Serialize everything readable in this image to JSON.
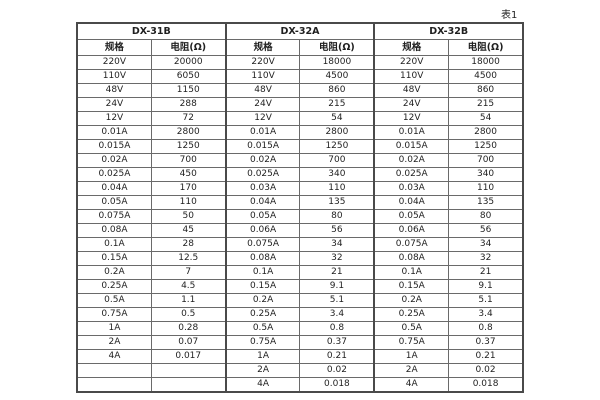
{
  "page": {
    "caption": "表1"
  },
  "table": {
    "row_count": 24,
    "colors": {
      "background": "#ffffff",
      "border": "#6a6a6a",
      "outer_border": "#4a4a4a",
      "text": "#1f1f1f"
    },
    "groups": [
      {
        "name": "DX-31B",
        "col_headers": [
          "规格",
          "电阻(Ω)"
        ],
        "rows": [
          [
            "220V",
            "20000"
          ],
          [
            "110V",
            "6050"
          ],
          [
            "48V",
            "1150"
          ],
          [
            "24V",
            "288"
          ],
          [
            "12V",
            "72"
          ],
          [
            "0.01A",
            "2800"
          ],
          [
            "0.015A",
            "1250"
          ],
          [
            "0.02A",
            "700"
          ],
          [
            "0.025A",
            "450"
          ],
          [
            "0.04A",
            "170"
          ],
          [
            "0.05A",
            "110"
          ],
          [
            "0.075A",
            "50"
          ],
          [
            "0.08A",
            "45"
          ],
          [
            "0.1A",
            "28"
          ],
          [
            "0.15A",
            "12.5"
          ],
          [
            "0.2A",
            "7"
          ],
          [
            "0.25A",
            "4.5"
          ],
          [
            "0.5A",
            "1.1"
          ],
          [
            "0.75A",
            "0.5"
          ],
          [
            "1A",
            "0.28"
          ],
          [
            "2A",
            "0.07"
          ],
          [
            "4A",
            "0.017"
          ],
          [
            "",
            ""
          ],
          [
            "",
            ""
          ]
        ]
      },
      {
        "name": "DX-32A",
        "col_headers": [
          "规格",
          "电阻(Ω)"
        ],
        "rows": [
          [
            "220V",
            "18000"
          ],
          [
            "110V",
            "4500"
          ],
          [
            "48V",
            "860"
          ],
          [
            "24V",
            "215"
          ],
          [
            "12V",
            "54"
          ],
          [
            "0.01A",
            "2800"
          ],
          [
            "0.015A",
            "1250"
          ],
          [
            "0.02A",
            "700"
          ],
          [
            "0.025A",
            "340"
          ],
          [
            "0.03A",
            "110"
          ],
          [
            "0.04A",
            "135"
          ],
          [
            "0.05A",
            "80"
          ],
          [
            "0.06A",
            "56"
          ],
          [
            "0.075A",
            "34"
          ],
          [
            "0.08A",
            "32"
          ],
          [
            "0.1A",
            "21"
          ],
          [
            "0.15A",
            "9.1"
          ],
          [
            "0.2A",
            "5.1"
          ],
          [
            "0.25A",
            "3.4"
          ],
          [
            "0.5A",
            "0.8"
          ],
          [
            "0.75A",
            "0.37"
          ],
          [
            "1A",
            "0.21"
          ],
          [
            "2A",
            "0.02"
          ],
          [
            "4A",
            "0.018"
          ]
        ]
      },
      {
        "name": "DX-32B",
        "col_headers": [
          "规格",
          "电阻(Ω)"
        ],
        "rows": [
          [
            "220V",
            "18000"
          ],
          [
            "110V",
            "4500"
          ],
          [
            "48V",
            "860"
          ],
          [
            "24V",
            "215"
          ],
          [
            "12V",
            "54"
          ],
          [
            "0.01A",
            "2800"
          ],
          [
            "0.015A",
            "1250"
          ],
          [
            "0.02A",
            "700"
          ],
          [
            "0.025A",
            "340"
          ],
          [
            "0.03A",
            "110"
          ],
          [
            "0.04A",
            "135"
          ],
          [
            "0.05A",
            "80"
          ],
          [
            "0.06A",
            "56"
          ],
          [
            "0.075A",
            "34"
          ],
          [
            "0.08A",
            "32"
          ],
          [
            "0.1A",
            "21"
          ],
          [
            "0.15A",
            "9.1"
          ],
          [
            "0.2A",
            "5.1"
          ],
          [
            "0.25A",
            "3.4"
          ],
          [
            "0.5A",
            "0.8"
          ],
          [
            "0.75A",
            "0.37"
          ],
          [
            "1A",
            "0.21"
          ],
          [
            "2A",
            "0.02"
          ],
          [
            "4A",
            "0.018"
          ]
        ]
      }
    ]
  }
}
